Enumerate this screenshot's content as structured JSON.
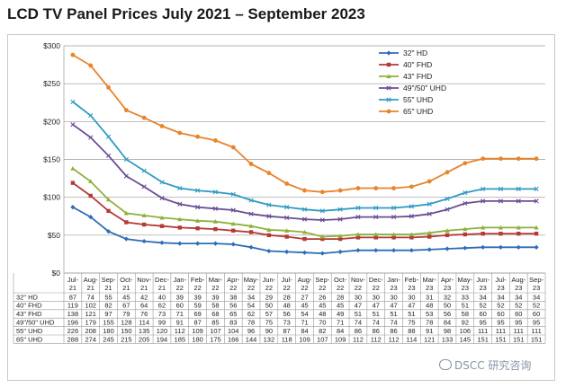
{
  "title": "LCD TV Panel Prices July 2021 – September 2023",
  "watermark": "DSCC 研究咨询",
  "chart_data": {
    "type": "line",
    "title": "LCD TV Panel Prices July 2021 – September 2023",
    "ylim": [
      0,
      300
    ],
    "yticks": [
      "$0",
      "$50",
      "$100",
      "$150",
      "$200",
      "$250",
      "$300"
    ],
    "ytick_values": [
      0,
      50,
      100,
      150,
      200,
      250,
      300
    ],
    "grid": "horizontal",
    "legend_position": "top-right",
    "categories": [
      [
        "Jul-",
        "21"
      ],
      [
        "Aug-",
        "21"
      ],
      [
        "Sep-",
        "21"
      ],
      [
        "Oct-",
        "21"
      ],
      [
        "Nov-",
        "21"
      ],
      [
        "Dec-",
        "21"
      ],
      [
        "Jan-",
        "22"
      ],
      [
        "Feb-",
        "22"
      ],
      [
        "Mar-",
        "22"
      ],
      [
        "Apr-",
        "22"
      ],
      [
        "May-",
        "22"
      ],
      [
        "Jun-",
        "22"
      ],
      [
        "Jul-",
        "22"
      ],
      [
        "Aug-",
        "22"
      ],
      [
        "Sep-",
        "22"
      ],
      [
        "Oct-",
        "22"
      ],
      [
        "Nov-",
        "22"
      ],
      [
        "Dec-",
        "22"
      ],
      [
        "Jan-",
        "23"
      ],
      [
        "Feb-",
        "23"
      ],
      [
        "Mar-",
        "23"
      ],
      [
        "Apr-",
        "23"
      ],
      [
        "May-",
        "23"
      ],
      [
        "Jun-",
        "23"
      ],
      [
        "Jul-",
        "23"
      ],
      [
        "Aug-",
        "23"
      ],
      [
        "Sep-",
        "23"
      ]
    ],
    "series": [
      {
        "name": "32\" HD",
        "color": "#2e6db4",
        "marker": "diamond",
        "values": [
          87,
          74,
          55,
          45,
          42,
          40,
          39,
          39,
          39,
          38,
          34,
          29,
          28,
          27,
          26,
          28,
          30,
          30,
          30,
          30,
          31,
          32,
          33,
          34,
          34,
          34,
          34
        ]
      },
      {
        "name": "40\" FHD",
        "color": "#b33a37",
        "marker": "square",
        "values": [
          119,
          102,
          82,
          67,
          64,
          62,
          60,
          59,
          58,
          56,
          54,
          50,
          48,
          45,
          45,
          45,
          47,
          47,
          47,
          47,
          48,
          50,
          51,
          52,
          52,
          52,
          52
        ]
      },
      {
        "name": "43\" FHD",
        "color": "#8fb13b",
        "marker": "triangle",
        "values": [
          138,
          121,
          97,
          79,
          76,
          73,
          71,
          69,
          68,
          65,
          62,
          57,
          56,
          54,
          48,
          49,
          51,
          51,
          51,
          51,
          53,
          56,
          58,
          60,
          60,
          60,
          60
        ]
      },
      {
        "name": "49\"/50\" UHD",
        "color": "#6a4c93",
        "marker": "x",
        "values": [
          196,
          179,
          155,
          128,
          114,
          99,
          91,
          87,
          85,
          83,
          78,
          75,
          73,
          71,
          70,
          71,
          74,
          74,
          74,
          75,
          78,
          84,
          92,
          95,
          95,
          95,
          95
        ]
      },
      {
        "name": "55\" UHD",
        "color": "#2f9bc1",
        "marker": "x",
        "values": [
          226,
          208,
          180,
          150,
          135,
          120,
          112,
          109,
          107,
          104,
          96,
          90,
          87,
          84,
          82,
          84,
          86,
          86,
          86,
          88,
          91,
          98,
          106,
          111,
          111,
          111,
          111
        ]
      },
      {
        "name": "65\" UHD",
        "color": "#e8842a",
        "marker": "circle",
        "values": [
          288,
          274,
          245,
          215,
          205,
          194,
          185,
          180,
          175,
          166,
          144,
          132,
          118,
          109,
          107,
          109,
          112,
          112,
          112,
          114,
          121,
          133,
          145,
          151,
          151,
          151,
          151
        ]
      }
    ]
  }
}
